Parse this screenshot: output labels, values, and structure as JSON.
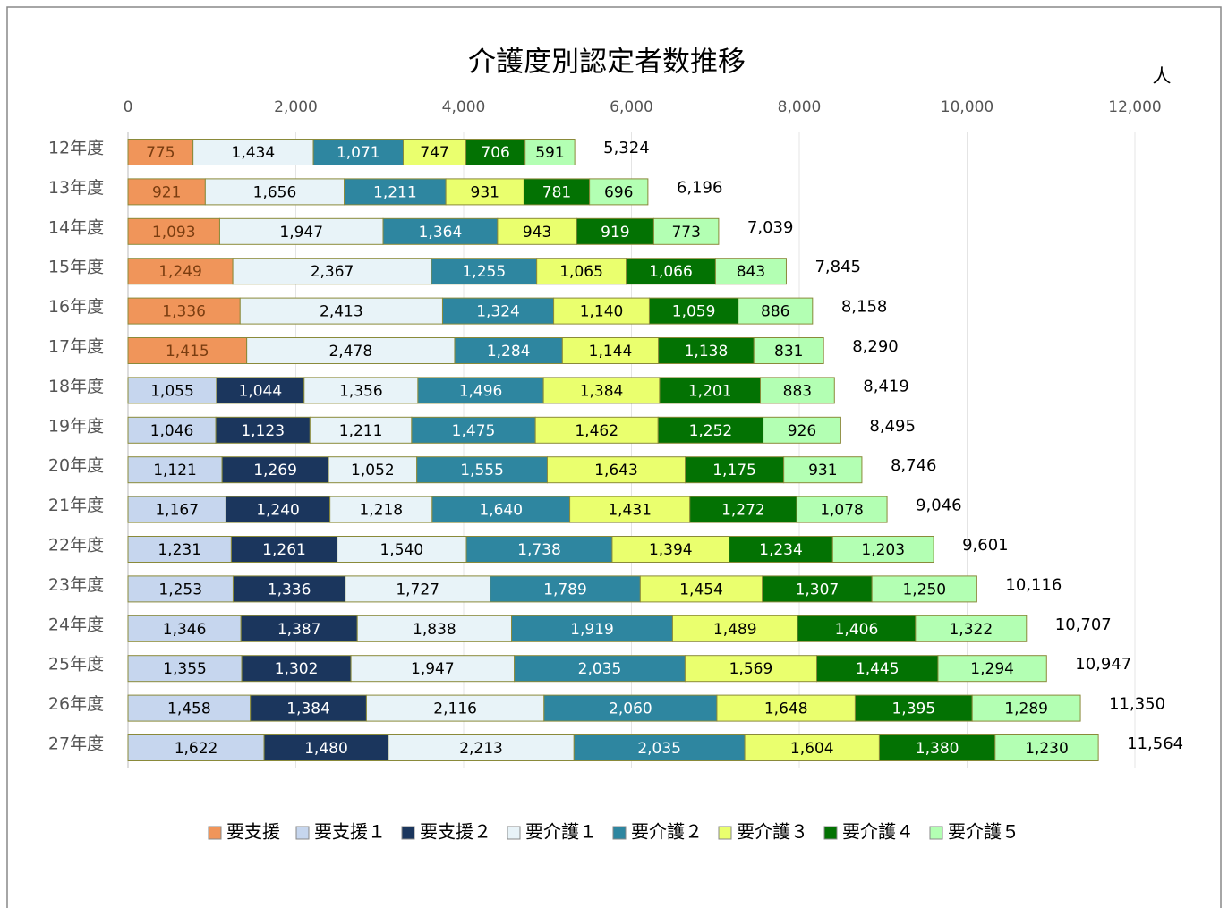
{
  "chart_data": {
    "type": "stacked_barh",
    "title": "介護度別認定者数推移",
    "x_unit": "人",
    "categories": [
      "12年度",
      "13年度",
      "14年度",
      "15年度",
      "16年度",
      "17年度",
      "18年度",
      "19年度",
      "20年度",
      "21年度",
      "22年度",
      "23年度",
      "24年度",
      "25年度",
      "26年度",
      "27年度"
    ],
    "xlim": [
      0,
      12000
    ],
    "xticks": [
      0,
      {
        "value": 2000,
        "label": "2,000"
      },
      {
        "value": 4000,
        "label": "4,000"
      },
      {
        "value": 6000,
        "label": "6,000"
      },
      {
        "value": 8000,
        "label": "8,000"
      },
      {
        "value": 10000,
        "label": "10,000"
      },
      {
        "value": 12000,
        "label": "12,000"
      }
    ],
    "grid": true,
    "legend": "bottom",
    "series": [
      {
        "name": "要支援",
        "color": "#f0955a",
        "label_color": "#7a3d10",
        "values": [
          775,
          921,
          1093,
          1249,
          1336,
          1415,
          null,
          null,
          null,
          null,
          null,
          null,
          null,
          null,
          null,
          null
        ],
        "value_labels": [
          "775",
          "921",
          "1,093",
          "1,249",
          "1,336",
          "1,415",
          null,
          null,
          null,
          null,
          null,
          null,
          null,
          null,
          null,
          null
        ]
      },
      {
        "name": "要支援１",
        "color": "#c6d6ee",
        "label_color": "#000",
        "values": [
          null,
          null,
          null,
          null,
          null,
          null,
          1055,
          1046,
          1121,
          1167,
          1231,
          1253,
          1346,
          1355,
          1458,
          1622
        ],
        "value_labels": [
          null,
          null,
          null,
          null,
          null,
          null,
          "1,055",
          "1,046",
          "1,121",
          "1,167",
          "1,231",
          "1,253",
          "1,346",
          "1,355",
          "1,458",
          "1,622"
        ]
      },
      {
        "name": "要支援２",
        "color": "#1b365d",
        "label_color": "#fff",
        "values": [
          null,
          null,
          null,
          null,
          null,
          null,
          1044,
          1123,
          1269,
          1240,
          1261,
          1336,
          1387,
          1302,
          1384,
          1480
        ],
        "value_labels": [
          null,
          null,
          null,
          null,
          null,
          null,
          "1,044",
          "1,123",
          "1,269",
          "1,240",
          "1,261",
          "1,336",
          "1,387",
          "1,302",
          "1,384",
          "1,480"
        ]
      },
      {
        "name": "要介護１",
        "color": "#e8f3f8",
        "label_color": "#000",
        "values": [
          1434,
          1656,
          1947,
          2367,
          2413,
          2478,
          1356,
          1211,
          1052,
          1218,
          1540,
          1727,
          1838,
          1947,
          2116,
          2213
        ],
        "value_labels": [
          "1,434",
          "1,656",
          "1,947",
          "2,367",
          "2,413",
          "2,478",
          "1,356",
          "1,211",
          "1,052",
          "1,218",
          "1,540",
          "1,727",
          "1,838",
          "1,947",
          "2,116",
          "2,213"
        ]
      },
      {
        "name": "要介護２",
        "color": "#2e86a0",
        "label_color": "#fff",
        "values": [
          1071,
          1211,
          1364,
          1255,
          1324,
          1284,
          1496,
          1475,
          1555,
          1640,
          1738,
          1789,
          1919,
          2035,
          2060,
          2035
        ],
        "value_labels": [
          "1,071",
          "1,211",
          "1,364",
          "1,255",
          "1,324",
          "1,284",
          "1,496",
          "1,475",
          "1,555",
          "1,640",
          "1,738",
          "1,789",
          "1,919",
          "2,035",
          "2,060",
          "2,035"
        ]
      },
      {
        "name": "要介護３",
        "color": "#eaff6e",
        "label_color": "#000",
        "values": [
          747,
          931,
          943,
          1065,
          1140,
          1144,
          1384,
          1462,
          1643,
          1431,
          1394,
          1454,
          1489,
          1569,
          1648,
          1604
        ],
        "value_labels": [
          "747",
          "931",
          "943",
          "1,065",
          "1,140",
          "1,144",
          "1,384",
          "1,462",
          "1,643",
          "1,431",
          "1,394",
          "1,454",
          "1,489",
          "1,569",
          "1,648",
          "1,604"
        ]
      },
      {
        "name": "要介護４",
        "color": "#037203",
        "label_color": "#fff",
        "values": [
          706,
          781,
          919,
          1066,
          1059,
          1138,
          1201,
          1252,
          1175,
          1272,
          1234,
          1307,
          1406,
          1445,
          1395,
          1380
        ],
        "value_labels": [
          "706",
          "781",
          "919",
          "1,066",
          "1,059",
          "1,138",
          "1,201",
          "1,252",
          "1,175",
          "1,272",
          "1,234",
          "1,307",
          "1,406",
          "1,445",
          "1,395",
          "1,380"
        ]
      },
      {
        "name": "要介護５",
        "color": "#b3ffb3",
        "label_color": "#000",
        "values": [
          591,
          696,
          773,
          843,
          886,
          831,
          883,
          926,
          931,
          1078,
          1203,
          1250,
          1322,
          1294,
          1289,
          1230
        ],
        "value_labels": [
          "591",
          "696",
          "773",
          "843",
          "886",
          "831",
          "883",
          "926",
          "931",
          "1,078",
          "1,203",
          "1,250",
          "1,322",
          "1,294",
          "1,289",
          "1,230"
        ]
      }
    ],
    "totals": [
      5324,
      6196,
      7039,
      7845,
      8158,
      8290,
      8419,
      8495,
      8746,
      9046,
      9601,
      10116,
      10707,
      10947,
      11350,
      11564
    ],
    "total_labels": [
      "5,324",
      "6,196",
      "7,039",
      "7,845",
      "8,158",
      "8,290",
      "8,419",
      "8,495",
      "8,746",
      "9,046",
      "9,601",
      "10,116",
      "10,707",
      "10,947",
      "11,350",
      "11,564"
    ]
  }
}
